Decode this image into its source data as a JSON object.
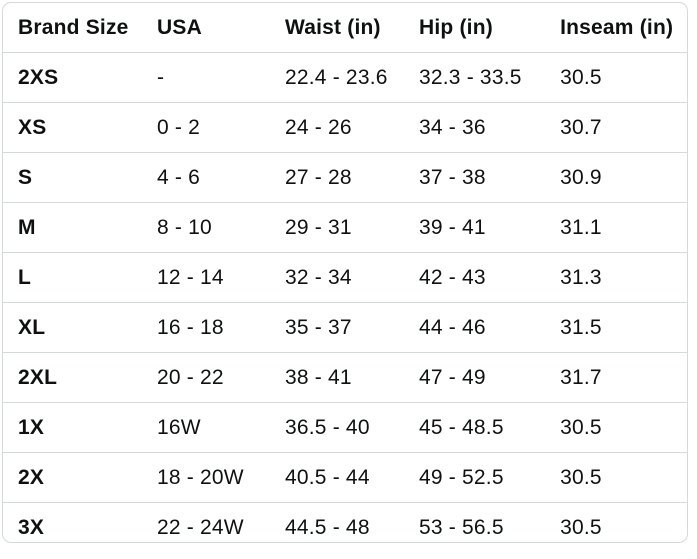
{
  "colors": {
    "text": "#0F1111",
    "border": "#D5D9D9",
    "background": "#FFFFFF"
  },
  "table": {
    "columns": [
      {
        "key": "brand",
        "label": "Brand Size"
      },
      {
        "key": "usa",
        "label": "USA"
      },
      {
        "key": "waist",
        "label": "Waist (in)"
      },
      {
        "key": "hip",
        "label": "Hip (in)"
      },
      {
        "key": "inseam",
        "label": "Inseam (in)"
      }
    ],
    "panes": {
      "left": [
        "brand",
        "usa",
        "waist"
      ],
      "right": [
        "hip",
        "inseam"
      ]
    },
    "rows": [
      {
        "brand": "2XS",
        "usa": "-",
        "waist": "22.4 - 23.6",
        "hip": "32.3 - 33.5",
        "inseam": "30.5"
      },
      {
        "brand": "XS",
        "usa": "0 - 2",
        "waist": "24 - 26",
        "hip": "34 - 36",
        "inseam": "30.7"
      },
      {
        "brand": "S",
        "usa": "4 - 6",
        "waist": "27 - 28",
        "hip": "37 - 38",
        "inseam": "30.9"
      },
      {
        "brand": "M",
        "usa": "8 - 10",
        "waist": "29 - 31",
        "hip": "39 - 41",
        "inseam": "31.1"
      },
      {
        "brand": "L",
        "usa": "12 - 14",
        "waist": "32 - 34",
        "hip": "42 - 43",
        "inseam": "31.3"
      },
      {
        "brand": "XL",
        "usa": "16 - 18",
        "waist": "35 - 37",
        "hip": "44 - 46",
        "inseam": "31.5"
      },
      {
        "brand": "2XL",
        "usa": "20 - 22",
        "waist": "38 - 41",
        "hip": "47 - 49",
        "inseam": "31.7"
      },
      {
        "brand": "1X",
        "usa": "16W",
        "waist": "36.5 - 40",
        "hip": "45 - 48.5",
        "inseam": "30.5"
      },
      {
        "brand": "2X",
        "usa": "18 - 20W",
        "waist": "40.5 - 44",
        "hip": "49 - 52.5",
        "inseam": "30.5"
      },
      {
        "brand": "3X",
        "usa": "22 - 24W",
        "waist": "44.5 - 48",
        "hip": "53 - 56.5",
        "inseam": "30.5"
      }
    ]
  }
}
